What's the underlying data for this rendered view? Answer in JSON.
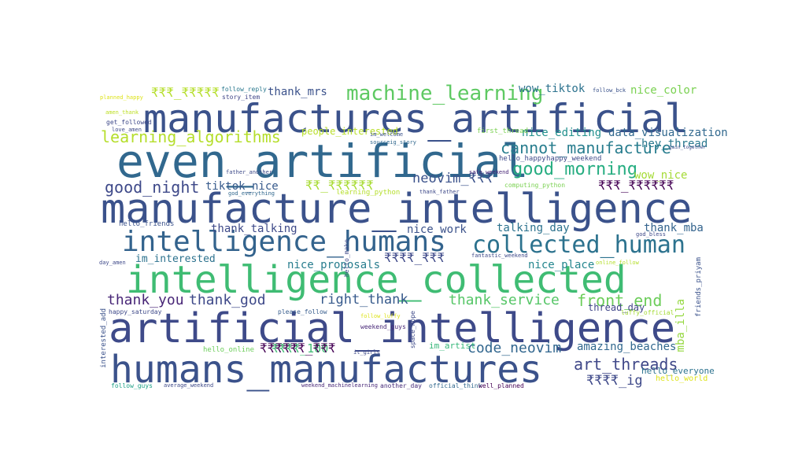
{
  "colors": {
    "background": "#ffffff",
    "palette": [
      "#440154",
      "#46327e",
      "#365c8d",
      "#277f8e",
      "#1fa187",
      "#4ac16d",
      "#a0da39",
      "#fde725"
    ]
  },
  "words": [
    {
      "text": "manufactures_artificial",
      "color": "#3b528b"
    },
    {
      "text": "even_artificial",
      "color": "#31688e"
    },
    {
      "text": "manufacture_intelligence",
      "color": "#3b528b"
    },
    {
      "text": "intelligence_humans",
      "color": "#33638d"
    },
    {
      "text": "collected_human",
      "color": "#2c728e"
    },
    {
      "text": "intelligence_collected",
      "color": "#3fbc73"
    },
    {
      "text": "artificial_intelligence",
      "color": "#3e4a89"
    },
    {
      "text": "humans_manufactures",
      "color": "#3b528b"
    },
    {
      "text": "machine_learning",
      "color": "#5ec962"
    },
    {
      "text": "learning_algorithms",
      "color": "#b5de2b"
    },
    {
      "text": "cannot_manufacture",
      "color": "#287d8e"
    },
    {
      "text": "good_morning",
      "color": "#26ad81"
    },
    {
      "text": "good_night",
      "color": "#3e4989"
    },
    {
      "text": "front_end",
      "color": "#6ccd5a"
    },
    {
      "text": "art_threads",
      "color": "#3f4788"
    },
    {
      "text": "code_neovim",
      "color": "#31668e"
    },
    {
      "text": "thank_you",
      "color": "#482677"
    },
    {
      "text": "thank_god",
      "color": "#3e4989"
    },
    {
      "text": "right_thank",
      "color": "#375a8c"
    },
    {
      "text": "thank_service",
      "color": "#56c667"
    },
    {
      "text": "wow_tiktok",
      "color": "#2c728e"
    },
    {
      "text": "nice_color",
      "color": "#7ad151"
    },
    {
      "text": "thank_mrs",
      "color": "#3b528b"
    },
    {
      "text": "nice_editing",
      "color": "#21908d"
    },
    {
      "text": "data_visualization",
      "color": "#31688e"
    },
    {
      "text": "hey_thread",
      "color": "#2a788e"
    },
    {
      "text": "wow_nice",
      "color": "#a5db36"
    },
    {
      "text": "neovim_₹₹₹",
      "color": "#3b528b"
    },
    {
      "text": "tiktok_nice",
      "color": "#375a8c"
    },
    {
      "text": "nice_work",
      "color": "#3b528b"
    },
    {
      "text": "talking_day",
      "color": "#2c728e"
    },
    {
      "text": "thank_talking",
      "color": "#3e4a89"
    },
    {
      "text": "thank_mba",
      "color": "#33638d"
    },
    {
      "text": "nice_proposals",
      "color": "#287d8e"
    },
    {
      "text": "nice_place",
      "color": "#24868e"
    },
    {
      "text": "im_interested",
      "color": "#2c728e"
    },
    {
      "text": "people_interested",
      "color": "#b8de29"
    },
    {
      "text": "₹₹₹₹_100",
      "color": "#3fbc73"
    },
    {
      "text": "₹₹₹₹₹₹_₹₹₹",
      "color": "#440154"
    },
    {
      "text": "₹₹₹₹_ig",
      "color": "#3e4989"
    },
    {
      "text": "amazing_beaches",
      "color": "#31688e"
    },
    {
      "text": "thread_day",
      "color": "#404688"
    },
    {
      "text": "₹₹₹_₹₹₹₹₹",
      "color": "#b5de2b"
    },
    {
      "text": "₹₹_₹₹₹₹₹₹",
      "color": "#a8db34"
    },
    {
      "text": "₹₹₹₹_₹₹₹",
      "color": "#3e4989"
    },
    {
      "text": "₹₹₹_₹₹₹₹₹₹",
      "color": "#440154"
    },
    {
      "text": "mba_illa",
      "color": "#95d840"
    },
    {
      "text": "hello_everyone",
      "color": "#2c728e"
    },
    {
      "text": "hello_world",
      "color": "#dde318"
    },
    {
      "text": "im_artist",
      "color": "#35b779"
    },
    {
      "text": "first_thread",
      "color": "#7ad151"
    },
    {
      "text": "hello_happy",
      "color": "#3e4989"
    },
    {
      "text": "happy_weekend",
      "color": "#3e4a89"
    },
    {
      "text": "computing_python",
      "color": "#7ad151"
    },
    {
      "text": "learning_python",
      "color": "#b5de2b"
    },
    {
      "text": "hello_friends",
      "color": "#3b528b"
    },
    {
      "text": "happy_saturday",
      "color": "#3e4989"
    },
    {
      "text": "please_follow",
      "color": "#365c8d"
    },
    {
      "text": "hello_online",
      "color": "#6ccd5a"
    },
    {
      "text": "follow_guys",
      "color": "#1fa187"
    },
    {
      "text": "average_weekend",
      "color": "#3e4a89"
    },
    {
      "text": "weekend_machinelearning",
      "color": "#482878"
    },
    {
      "text": "another_day",
      "color": "#472c7a"
    },
    {
      "text": "official_think",
      "color": "#31688e"
    },
    {
      "text": "well_planned",
      "color": "#440154"
    },
    {
      "text": "safe_weekend",
      "color": "#482677"
    },
    {
      "text": "weekend_guys",
      "color": "#482878"
    },
    {
      "text": "it_girls",
      "color": "#3e4989"
    },
    {
      "text": "follow_luffy",
      "color": "#dde318"
    },
    {
      "text": "luffy_official",
      "color": "#a5db36"
    },
    {
      "text": "follow_reply",
      "color": "#2a788e"
    },
    {
      "text": "story_item",
      "color": "#404688"
    },
    {
      "text": "planned_happy",
      "color": "#dde318"
    },
    {
      "text": "amen_thank",
      "color": "#bddf26"
    },
    {
      "text": "get_followed",
      "color": "#3e4989"
    },
    {
      "text": "love_amen",
      "color": "#3e4a89"
    },
    {
      "text": "im_welcome",
      "color": "#3b528b"
    },
    {
      "text": "sourceig_story",
      "color": "#31688e"
    },
    {
      "text": "father_another",
      "color": "#3e4a89"
    },
    {
      "text": "god_everything",
      "color": "#31688e"
    },
    {
      "text": "thank_father",
      "color": "#3e4989"
    },
    {
      "text": "fantastic_weekend",
      "color": "#3e4989"
    },
    {
      "text": "online_follow",
      "color": "#b5de2b"
    },
    {
      "text": "god_bless",
      "color": "#3e4989"
    },
    {
      "text": "gain_together",
      "color": "#3e4a89"
    },
    {
      "text": "day_amen",
      "color": "#3e4989"
    },
    {
      "text": "follow_bck",
      "color": "#3b528b"
    },
    {
      "text": "interested_add",
      "color": "#3b528b"
    },
    {
      "text": "friends_priyam",
      "color": "#3b528b"
    },
    {
      "text": "hello_make",
      "color": "#3e4a89"
    },
    {
      "text": "space_hope",
      "color": "#3e4a89"
    }
  ]
}
